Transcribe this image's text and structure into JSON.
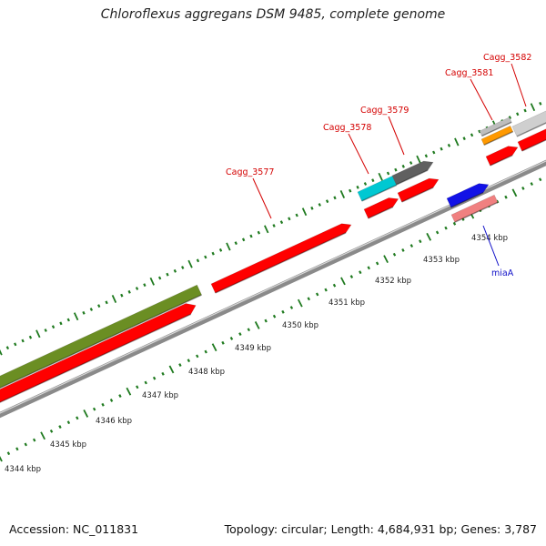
{
  "title": "Chloroflexus aggregans DSM 9485, complete genome",
  "footer": {
    "accession": "Accession: NC_011831",
    "stats": "Topology: circular; Length: 4,684,931 bp; Genes: 3,787"
  },
  "colors": {
    "cds": "#ff0000",
    "trna": "#1212e6",
    "gene_label": "#d40000",
    "mia_label": "#1010c8",
    "backbone": "#8a8a8a",
    "tick": "#1f7a1f",
    "olive": "#6b8e23",
    "cyan": "#00c8d2",
    "dark_gray": "#606060",
    "orange": "#ff9900",
    "light_gray": "#cfcfcf",
    "pink": "#f08080"
  },
  "kbp_labels": [
    "4344 kbp",
    "4345 kbp",
    "4346 kbp",
    "4347 kbp",
    "4348 kbp",
    "4349 kbp",
    "4350 kbp",
    "4351 kbp",
    "4352 kbp",
    "4353 kbp",
    "4354 kbp"
  ],
  "gene_labels": [
    {
      "text": "Cagg_3577",
      "color": "gene_label"
    },
    {
      "text": "Cagg_3578",
      "color": "gene_label"
    },
    {
      "text": "Cagg_3579",
      "color": "gene_label"
    },
    {
      "text": "Cagg_3581",
      "color": "gene_label"
    },
    {
      "text": "Cagg_3582",
      "color": "gene_label"
    },
    {
      "text": "miaA",
      "color": "mia_label"
    }
  ]
}
